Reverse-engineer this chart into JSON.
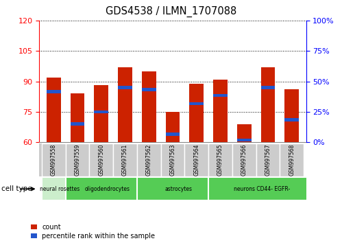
{
  "title": "GDS4538 / ILMN_1707088",
  "samples": [
    "GSM997558",
    "GSM997559",
    "GSM997560",
    "GSM997561",
    "GSM997562",
    "GSM997563",
    "GSM997564",
    "GSM997565",
    "GSM997566",
    "GSM997567",
    "GSM997568"
  ],
  "bar_bottoms": [
    60,
    60,
    60,
    60,
    60,
    60,
    60,
    60,
    60,
    60,
    60
  ],
  "bar_tops": [
    92,
    84,
    88,
    97,
    95,
    75,
    89,
    91,
    69,
    97,
    86
  ],
  "blue_positions": [
    85,
    69,
    75,
    87,
    86,
    64,
    79,
    83,
    61,
    87,
    71
  ],
  "ylim_left": [
    60,
    120
  ],
  "yticks_left": [
    60,
    75,
    90,
    105,
    120
  ],
  "ylim_right": [
    0,
    100
  ],
  "yticks_right": [
    0,
    25,
    50,
    75,
    100
  ],
  "bar_color": "#cc2200",
  "blue_color": "#2255cc",
  "group_spans": [
    {
      "label": "neural rosettes",
      "start": 0,
      "end": 0,
      "color": "#cceecc"
    },
    {
      "label": "oligodendrocytes",
      "start": 1,
      "end": 3,
      "color": "#55cc55"
    },
    {
      "label": "astrocytes",
      "start": 4,
      "end": 6,
      "color": "#55cc55"
    },
    {
      "label": "neurons CD44- EGFR-",
      "start": 7,
      "end": 10,
      "color": "#55cc55"
    }
  ],
  "sample_bg_color": "#cccccc",
  "legend_count_label": "count",
  "legend_pct_label": "percentile rank within the sample",
  "cell_type_label": "cell type"
}
